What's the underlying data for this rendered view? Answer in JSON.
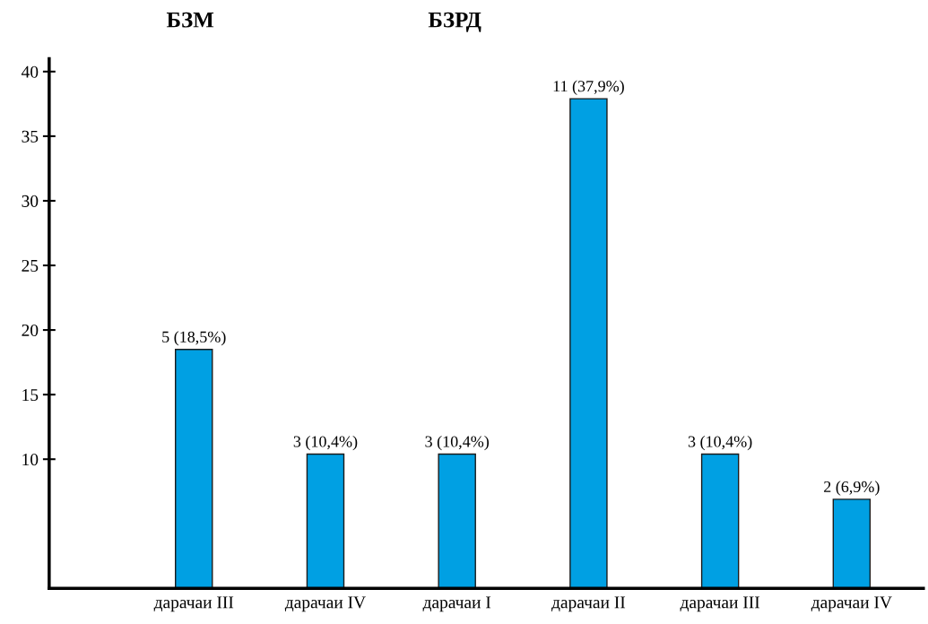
{
  "chart_data": {
    "type": "bar",
    "categories": [
      "дарачаи III",
      "дарачаи IV",
      "дарачаи I",
      "дарачаи II",
      "дарачаи III",
      "дарачаи IV"
    ],
    "values": [
      18.5,
      10.4,
      10.4,
      37.9,
      10.4,
      6.9
    ],
    "value_labels": [
      "5 (18,5%)",
      "3 (10,4%)",
      "3 (10,4%)",
      "11 (37,9%)",
      "3 (10,4%)",
      "2 (6,9%)"
    ],
    "color": "#00a0e3",
    "ylim": [
      0,
      41
    ],
    "yticks": [
      10,
      15,
      20,
      25,
      30,
      35,
      40
    ],
    "grid": false,
    "legend": false,
    "annotations": [
      "БЗМ",
      "БЗРД"
    ]
  }
}
